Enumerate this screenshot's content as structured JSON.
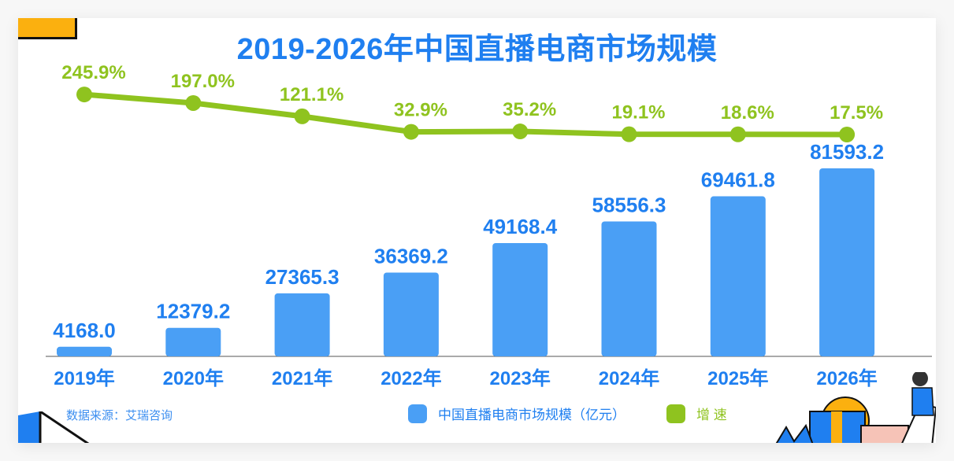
{
  "chart_data": {
    "type": "bar+line",
    "title": "2019-2026年中国直播电商市场规模",
    "categories": [
      "2019年",
      "2020年",
      "2021年",
      "2022年",
      "2023年",
      "2024年",
      "2025年",
      "2026年"
    ],
    "series": [
      {
        "name": "中国直播电商市场规模（亿元）",
        "type": "bar",
        "color": "#4a9ff5",
        "values": [
          4168.0,
          12379.2,
          27365.3,
          36369.2,
          49168.4,
          58556.3,
          69461.8,
          81593.2
        ],
        "labels": [
          "4168.0",
          "12379.2",
          "27365.3",
          "36369.2",
          "49168.4",
          "58556.3",
          "69461.8",
          "81593.2"
        ]
      },
      {
        "name": "增 速",
        "type": "line",
        "color": "#8fc31f",
        "values": [
          245.9,
          197.0,
          121.1,
          32.9,
          35.2,
          19.1,
          18.6,
          17.5
        ],
        "labels": [
          "245.9%",
          "197.0%",
          "121.1%",
          "32.9%",
          "35.2%",
          "19.1%",
          "18.6%",
          "17.5%"
        ]
      }
    ],
    "source": "数据来源：艾瑞咨询",
    "legend_position": "bottom",
    "grid": false
  }
}
